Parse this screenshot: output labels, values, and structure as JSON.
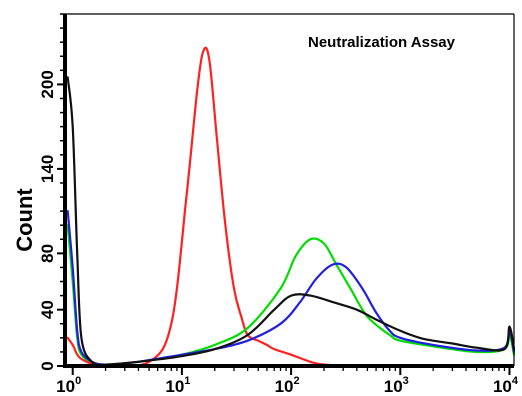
{
  "chart_data": {
    "type": "line",
    "title": "Neutralization Assay",
    "xlabel": "",
    "ylabel": "Count",
    "x_scale": "log",
    "xlim": [
      0.85,
      11000
    ],
    "ylim": [
      0,
      250
    ],
    "grid": false,
    "x_ticks": [
      {
        "value": 1,
        "base": "10",
        "exp": "0"
      },
      {
        "value": 10,
        "base": "10",
        "exp": "1"
      },
      {
        "value": 100,
        "base": "10",
        "exp": "2"
      },
      {
        "value": 1000,
        "base": "10",
        "exp": "3"
      },
      {
        "value": 10000,
        "base": "10",
        "exp": "4"
      }
    ],
    "y_ticks": [
      {
        "value": 0,
        "label": "0"
      },
      {
        "value": 40,
        "label": "40"
      },
      {
        "value": 80,
        "label": "80"
      },
      {
        "value": 140,
        "label": "140"
      },
      {
        "value": 200,
        "label": "200"
      }
    ],
    "series": [
      {
        "color": "#ff2020",
        "x": [
          0.9,
          1.0,
          1.2,
          2,
          5,
          8,
          11,
          14,
          16,
          18,
          21,
          25,
          30,
          35,
          40,
          50,
          60,
          70,
          100,
          150,
          200,
          400,
          1000,
          10000
        ],
        "y": [
          20,
          15,
          5,
          0,
          3,
          30,
          120,
          200,
          225,
          215,
          160,
          100,
          55,
          35,
          22,
          18,
          15,
          12,
          8,
          3,
          1,
          0,
          0,
          0
        ]
      },
      {
        "color": "#00dd00",
        "x": [
          0.9,
          1.0,
          1.1,
          1.2,
          1.5,
          2,
          4,
          10,
          20,
          40,
          80,
          110,
          150,
          200,
          260,
          350,
          500,
          800,
          1000,
          2000,
          5000,
          9000,
          10000,
          11000
        ],
        "y": [
          100,
          60,
          20,
          8,
          3,
          1,
          3,
          8,
          15,
          27,
          55,
          78,
          90,
          87,
          72,
          55,
          35,
          22,
          18,
          14,
          10,
          12,
          22,
          8
        ]
      },
      {
        "color": "#2020dd",
        "x": [
          0.9,
          1.0,
          1.1,
          1.2,
          1.5,
          2,
          4,
          10,
          20,
          40,
          80,
          120,
          170,
          240,
          320,
          450,
          600,
          800,
          1000,
          2000,
          5000,
          9000,
          10000,
          11000
        ],
        "y": [
          110,
          70,
          25,
          10,
          3,
          1,
          3,
          8,
          12,
          18,
          30,
          45,
          62,
          72,
          70,
          55,
          38,
          25,
          20,
          15,
          11,
          13,
          25,
          10
        ]
      },
      {
        "color": "#111111",
        "x": [
          0.9,
          1.0,
          1.1,
          1.2,
          1.5,
          2,
          4,
          10,
          20,
          40,
          70,
          100,
          150,
          250,
          400,
          600,
          1000,
          1500,
          2000,
          3000,
          5000,
          9000,
          10000,
          11000
        ],
        "y": [
          205,
          170,
          80,
          20,
          3,
          1,
          3,
          7,
          12,
          22,
          40,
          50,
          50,
          45,
          40,
          33,
          25,
          20,
          18,
          16,
          13,
          12,
          28,
          12
        ]
      }
    ]
  }
}
